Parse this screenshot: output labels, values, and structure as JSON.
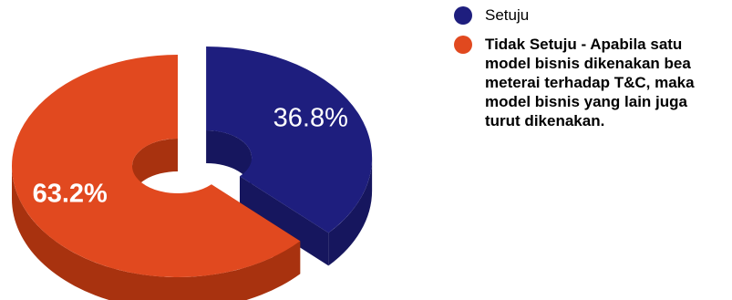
{
  "chart_data": {
    "type": "pie",
    "style": "3d-donut",
    "slices": [
      {
        "label": "Setuju",
        "value": 36.8,
        "value_label": "36.8%",
        "color": "#1E1E7E",
        "side_color": "#16165E",
        "exploded": true,
        "label_bold": false
      },
      {
        "label": "Tidak Setuju - Apabila satu model bisnis dikenakan bea meterai terhadap T&C, maka model bisnis yang lain juga turut dikenakan.",
        "value": 63.2,
        "value_label": "63.2%",
        "color": "#E1491F",
        "side_color": "#A8320F",
        "exploded": false,
        "label_bold": true
      }
    ],
    "legend_position": "right"
  }
}
